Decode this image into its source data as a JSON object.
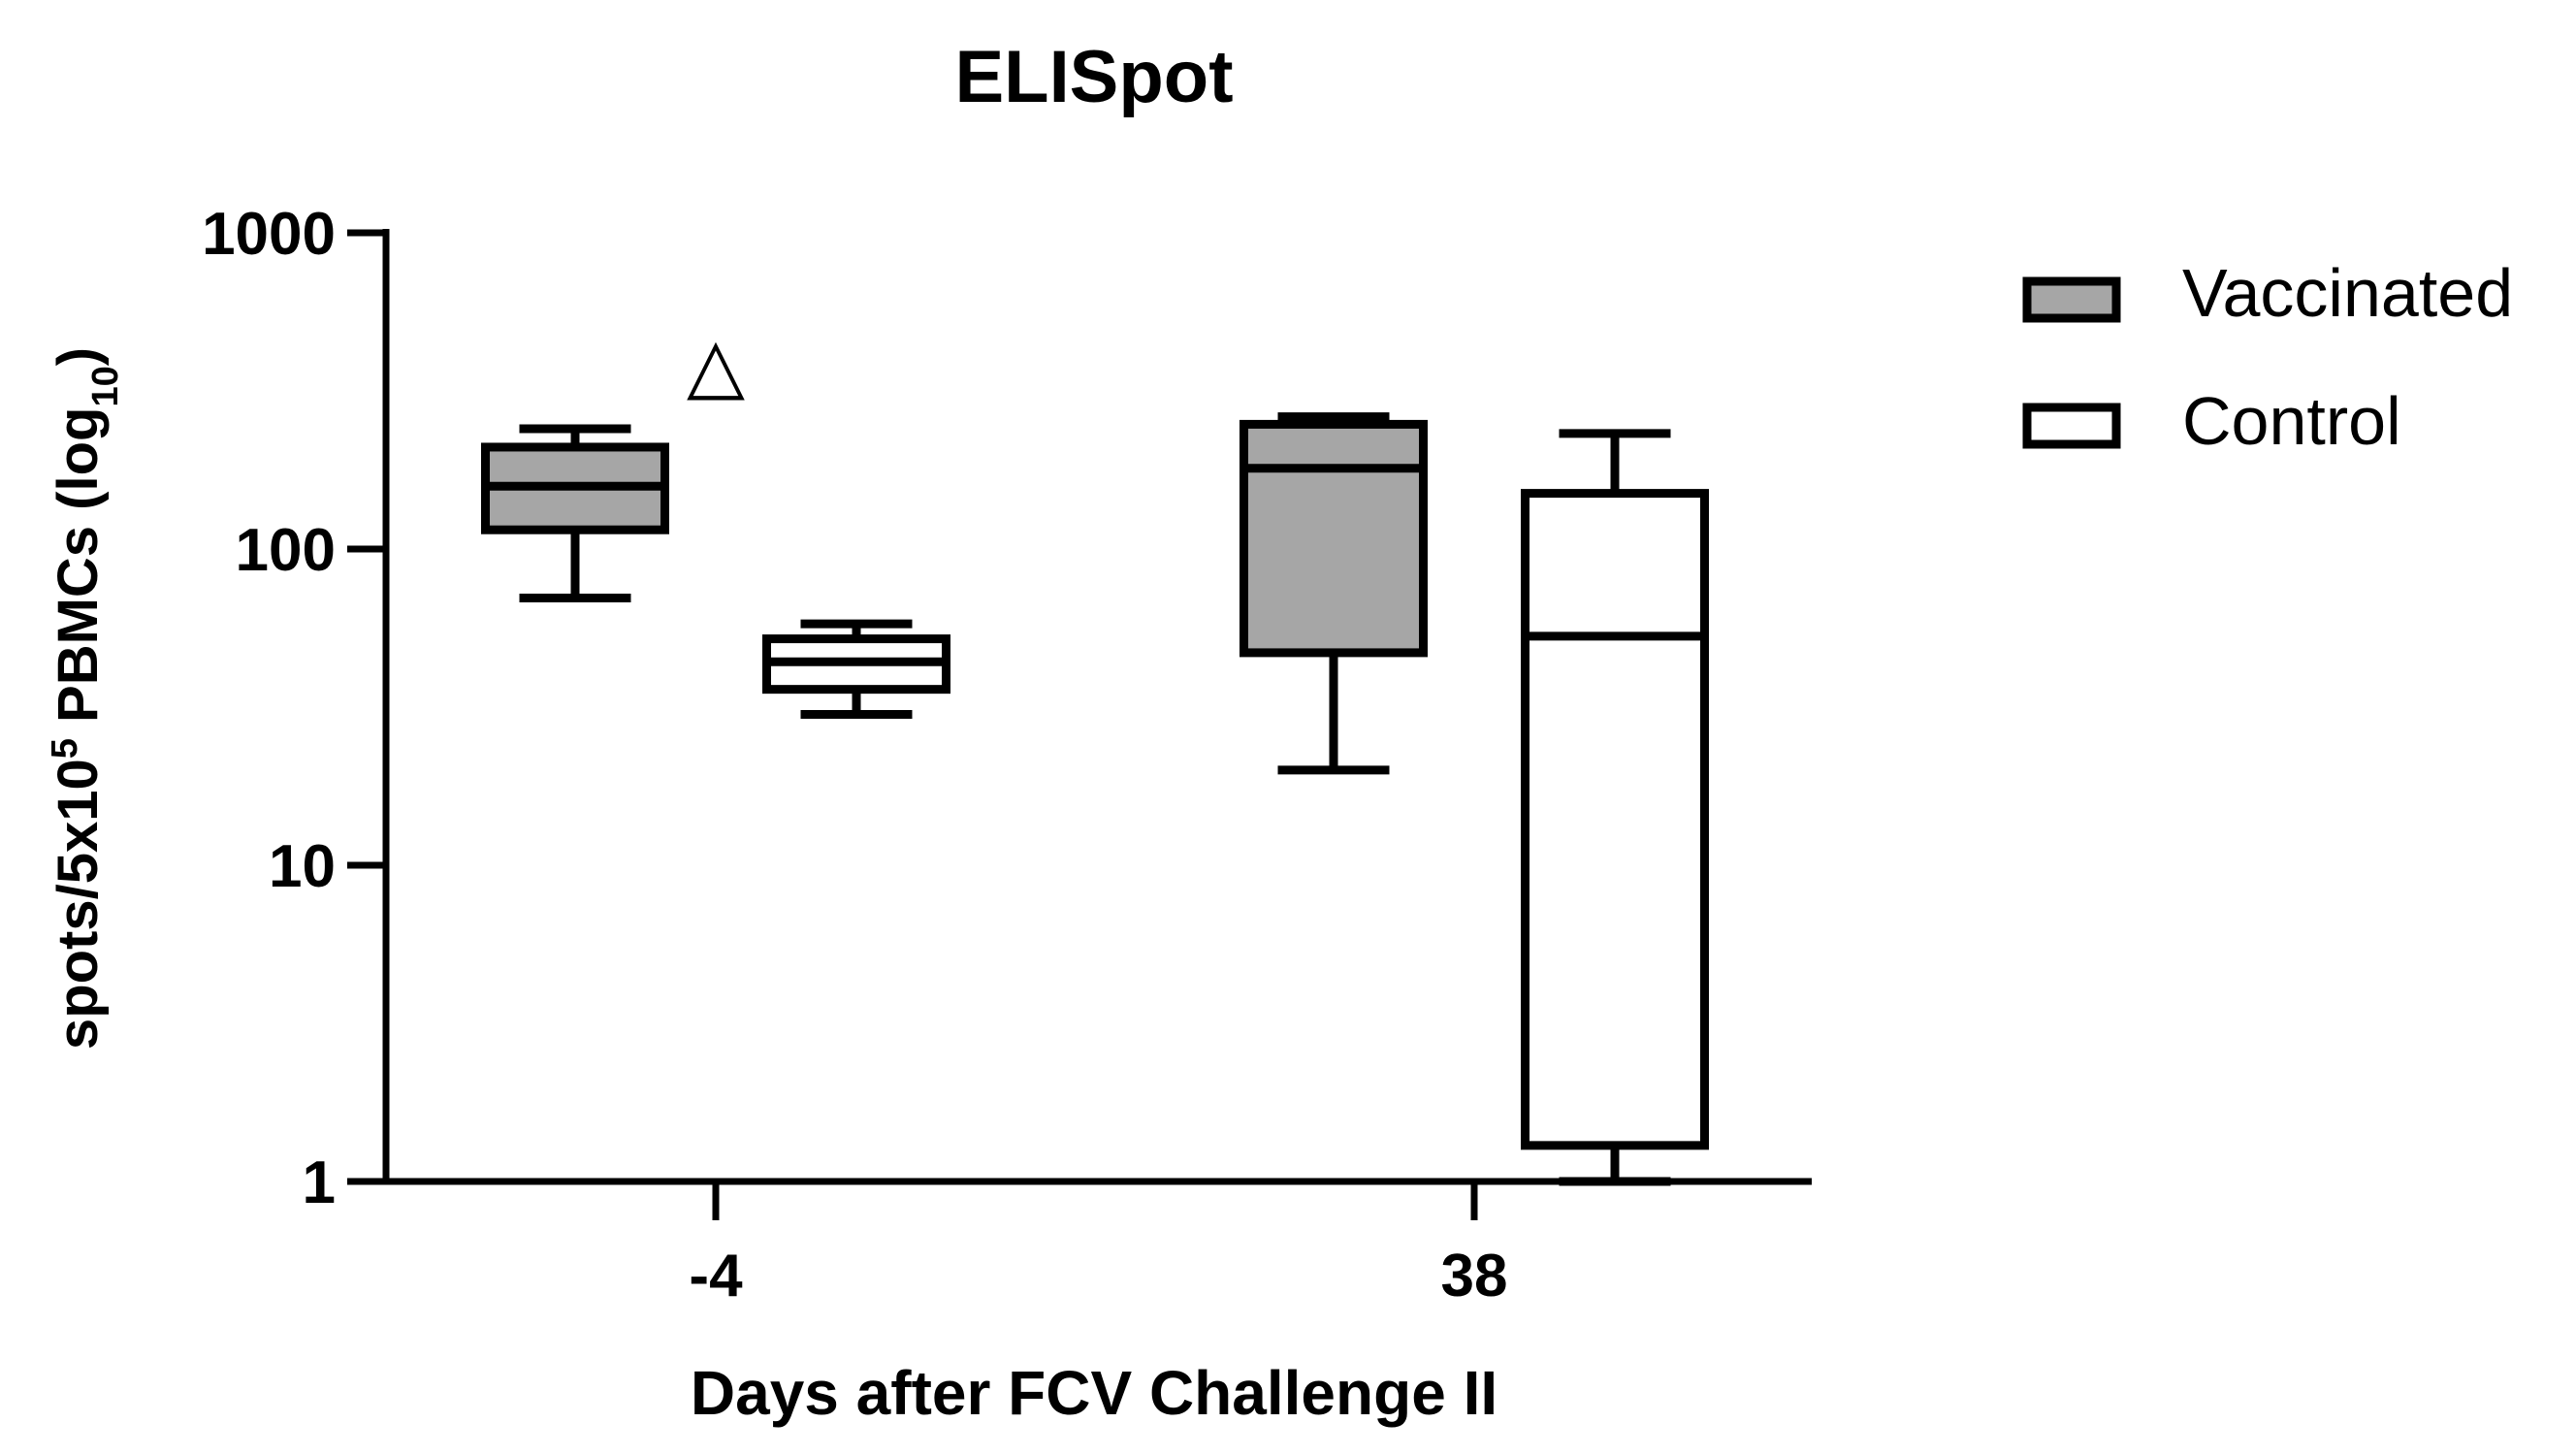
{
  "chart_data": {
    "type": "box",
    "title": "ELISpot",
    "ylabel": {
      "main": "spots/5x10",
      "sup": "5",
      "mid": " PBMCs (log",
      "sub": "10",
      "end": ")"
    },
    "xlabel": "Days after FCV Challenge II",
    "y_scale": "log10",
    "ylim": [
      1,
      1000
    ],
    "y_ticks": [
      {
        "value": 1,
        "label": "1"
      },
      {
        "value": 10,
        "label": "10"
      },
      {
        "value": 100,
        "label": "100"
      },
      {
        "value": 1000,
        "label": "1000"
      }
    ],
    "categories": [
      "-4",
      "38"
    ],
    "series": [
      {
        "name": "Vaccinated",
        "fill": "#a6a6a6",
        "boxes": [
          {
            "category": "-4",
            "min": 70,
            "q1": 115,
            "median": 158,
            "q3": 210,
            "max": 240
          },
          {
            "category": "38",
            "min": 20,
            "q1": 47,
            "median": 180,
            "q3": 248,
            "max": 262
          }
        ]
      },
      {
        "name": "Control",
        "fill": "#ffffff",
        "boxes": [
          {
            "category": "-4",
            "min": 30,
            "q1": 36,
            "median": 44,
            "q3": 52,
            "max": 58
          },
          {
            "category": "38",
            "min": 1,
            "q1": 1.3,
            "median": 53,
            "q3": 150,
            "max": 232
          }
        ]
      }
    ],
    "annotations": [
      {
        "symbol": "△",
        "category": "-4",
        "value": 370
      }
    ],
    "legend": {
      "position": "top-right"
    },
    "grid": false
  }
}
